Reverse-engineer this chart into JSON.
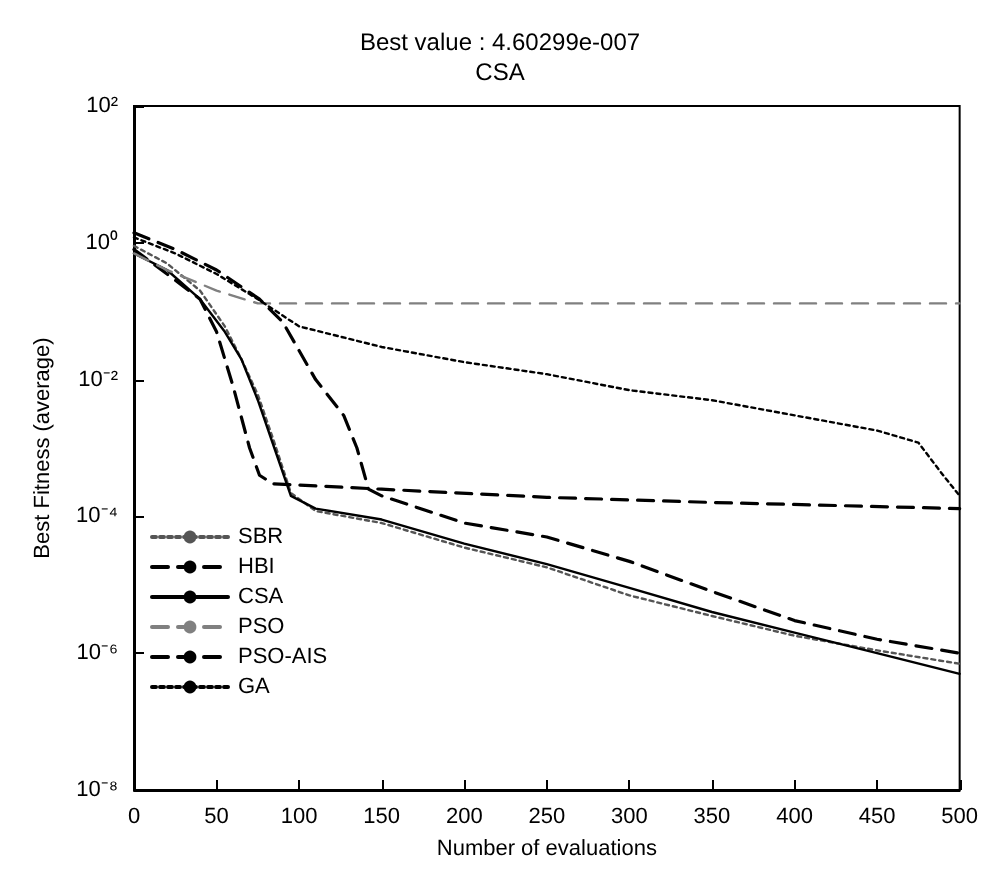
{
  "chart_data": {
    "type": "line",
    "title": "Best value : 4.60299e-007",
    "subtitle": "CSA",
    "xlabel": "Number of evaluations",
    "ylabel": "Best Fitness (average)",
    "log": "y",
    "legend": "bottom left",
    "marker": "none",
    "grid": false,
    "xlim": [
      0,
      500
    ],
    "xticks": [
      0,
      50,
      100,
      150,
      200,
      250,
      300,
      350,
      400,
      450,
      500
    ],
    "ylim": [
      1e-08,
      100
    ],
    "yticks": [
      {
        "value": 1e-08,
        "label": "10⁻⁸"
      },
      {
        "value": 1e-06,
        "label": "10⁻⁶"
      },
      {
        "value": 0.0001,
        "label": "10⁻⁴"
      },
      {
        "value": 0.01,
        "label": "10⁻²"
      },
      {
        "value": 1,
        "label": "10⁰"
      },
      {
        "value": 100,
        "label": "10²"
      }
    ],
    "series": [
      {
        "name": "SBR",
        "color": "#555555",
        "line_style": "dotted",
        "x": [
          0,
          20,
          40,
          55,
          65,
          75,
          85,
          95,
          110,
          150,
          200,
          250,
          300,
          350,
          400,
          450,
          500
        ],
        "values": [
          0.9,
          0.5,
          0.2,
          0.06,
          0.02,
          0.006,
          0.0012,
          0.00022,
          0.00012,
          8e-05,
          3.5e-05,
          1.8e-05,
          7e-06,
          3.5e-06,
          1.8e-06,
          1.1e-06,
          7e-07
        ]
      },
      {
        "name": "HBI",
        "color": "#000000",
        "line_style": "dashed",
        "x": [
          0,
          20,
          40,
          50,
          60,
          70,
          76,
          84,
          150,
          250,
          350,
          500
        ],
        "values": [
          0.8,
          0.35,
          0.15,
          0.05,
          0.008,
          0.001,
          0.0004,
          0.0003,
          0.00025,
          0.00019,
          0.00016,
          0.00013
        ]
      },
      {
        "name": "CSA",
        "color": "#000000",
        "line_style": "solid",
        "x": [
          0,
          20,
          40,
          55,
          65,
          75,
          85,
          95,
          110,
          150,
          200,
          250,
          300,
          350,
          400,
          450,
          500
        ],
        "values": [
          0.7,
          0.4,
          0.15,
          0.05,
          0.02,
          0.005,
          0.001,
          0.0002,
          0.00013,
          9e-05,
          4e-05,
          2e-05,
          9e-06,
          4e-06,
          2e-06,
          1e-06,
          5e-07
        ]
      },
      {
        "name": "PSO",
        "color": "#808080",
        "line_style": "dashed",
        "x": [
          0,
          20,
          50,
          75,
          500
        ],
        "values": [
          0.7,
          0.4,
          0.2,
          0.13,
          0.13
        ]
      },
      {
        "name": "PSO-AIS",
        "color": "#000000",
        "line_style": "dashed",
        "x": [
          0,
          25,
          50,
          76,
          90,
          110,
          127,
          135,
          142,
          150,
          200,
          250,
          300,
          350,
          400,
          450,
          500
        ],
        "values": [
          1.4,
          0.8,
          0.4,
          0.15,
          0.07,
          0.01,
          0.003,
          0.001,
          0.00025,
          0.0002,
          8e-05,
          5e-05,
          2.2e-05,
          8e-06,
          3e-06,
          1.6e-06,
          1e-06
        ]
      },
      {
        "name": "GA",
        "color": "#000000",
        "line_style": "dotted",
        "x": [
          0,
          25,
          50,
          75,
          100,
          150,
          200,
          250,
          300,
          350,
          400,
          450,
          475,
          490,
          500
        ],
        "values": [
          1.2,
          0.7,
          0.35,
          0.15,
          0.06,
          0.03,
          0.018,
          0.012,
          0.007,
          0.005,
          0.003,
          0.0018,
          0.0012,
          0.0004,
          0.0002
        ]
      }
    ]
  }
}
